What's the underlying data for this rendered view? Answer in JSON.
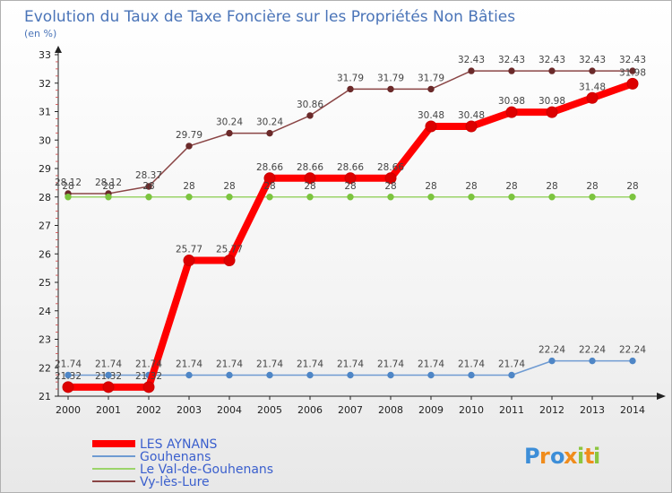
{
  "chart_data": {
    "type": "line",
    "title": "Evolution du Taux de Taxe Foncière sur les Propriétés Non Bâties",
    "subtitle": "(en %)",
    "xlabel": "",
    "ylabel": "",
    "categories": [
      "2000",
      "2001",
      "2002",
      "2003",
      "2004",
      "2005",
      "2006",
      "2007",
      "2008",
      "2009",
      "2010",
      "2011",
      "2012",
      "2013",
      "2014"
    ],
    "ylim": [
      21,
      33
    ],
    "yticks": [
      21,
      22,
      23,
      24,
      25,
      26,
      27,
      28,
      29,
      30,
      31,
      32,
      33
    ],
    "grid": false,
    "legend_position": "bottom-left",
    "series": [
      {
        "name": "LES AYNANS",
        "color": "#ff0000",
        "marker": "#dd0000",
        "width": 8,
        "values": [
          21.32,
          21.32,
          21.32,
          25.77,
          25.77,
          28.66,
          28.66,
          28.66,
          28.66,
          30.48,
          30.48,
          30.98,
          30.98,
          31.48,
          31.98
        ],
        "labels": [
          "21.32",
          "21.32",
          "21.32",
          "25.77",
          "25.77",
          "28.66",
          "28.66",
          "28.66",
          "28.66",
          "30.48",
          "30.48",
          "30.98",
          "30.98",
          "31.48",
          "31.98"
        ]
      },
      {
        "name": "Gouhenans",
        "color": "#6f9bd2",
        "marker": "#4f86c6",
        "width": 1.5,
        "values": [
          21.74,
          21.74,
          21.74,
          21.74,
          21.74,
          21.74,
          21.74,
          21.74,
          21.74,
          21.74,
          21.74,
          21.74,
          22.24,
          22.24,
          22.24
        ],
        "labels": [
          "21.74",
          "21.74",
          "21.74",
          "21.74",
          "21.74",
          "21.74",
          "21.74",
          "21.74",
          "21.74",
          "21.74",
          "21.74",
          "21.74",
          "22.24",
          "22.24",
          "22.24"
        ]
      },
      {
        "name": "Le Val-de-Gouhenans",
        "color": "#9bd46a",
        "marker": "#7cc43f",
        "width": 1.5,
        "values": [
          28,
          28,
          28,
          28,
          28,
          28,
          28,
          28,
          28,
          28,
          28,
          28,
          28,
          28,
          28
        ],
        "labels": [
          "28",
          "28",
          "28",
          "28",
          "28",
          "28",
          "28",
          "28",
          "28",
          "28",
          "28",
          "28",
          "28",
          "28",
          "28"
        ]
      },
      {
        "name": "Vy-lès-Lure",
        "color": "#8a4545",
        "marker": "#6b2a2a",
        "width": 1.5,
        "values": [
          28.12,
          28.12,
          28.37,
          29.79,
          30.24,
          30.24,
          30.86,
          31.79,
          31.79,
          31.79,
          32.43,
          32.43,
          32.43,
          32.43,
          32.43
        ],
        "labels": [
          "28.12",
          "28.12",
          "28.37",
          "29.79",
          "30.24",
          "30.24",
          "30.86",
          "31.79",
          "31.79",
          "31.79",
          "32.43",
          "32.43",
          "32.43",
          "32.43",
          "32.43"
        ]
      }
    ]
  },
  "brand": {
    "letters": [
      "P",
      "r",
      "o",
      "x",
      "i",
      "t",
      "i"
    ],
    "colors": [
      "#3d8ed8",
      "#f08c1c",
      "#3d8ed8",
      "#f08c1c",
      "#8cc63f",
      "#f08c1c",
      "#8cc63f"
    ]
  }
}
